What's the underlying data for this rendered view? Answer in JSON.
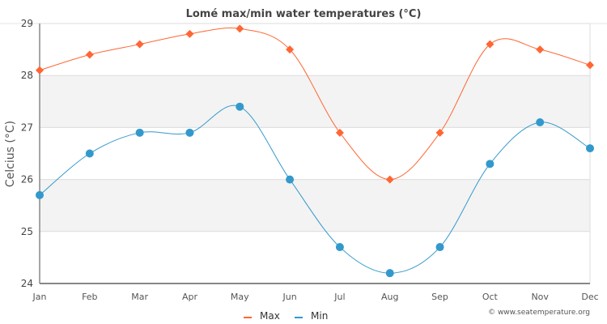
{
  "chart_data": {
    "type": "line",
    "title": "Lomé max/min water temperatures (°C)",
    "xlabel": "",
    "ylabel": "Celcius (°C)",
    "categories": [
      "Jan",
      "Feb",
      "Mar",
      "Apr",
      "May",
      "Jun",
      "Jul",
      "Aug",
      "Sep",
      "Oct",
      "Nov",
      "Dec"
    ],
    "ylim": [
      24,
      29
    ],
    "yticks": [
      24,
      25,
      26,
      27,
      28,
      29
    ],
    "grid": true,
    "alternating_bands": true,
    "legend_position": "bottom-center",
    "series": [
      {
        "name": "Max",
        "color": "#ff6633",
        "marker": "diamond",
        "values": [
          28.1,
          28.4,
          28.6,
          28.8,
          28.9,
          28.5,
          26.9,
          26.0,
          26.9,
          28.6,
          28.5,
          28.2
        ]
      },
      {
        "name": "Min",
        "color": "#3399cc",
        "marker": "circle",
        "values": [
          25.7,
          26.5,
          26.9,
          26.9,
          27.4,
          26.0,
          24.7,
          24.2,
          24.7,
          26.3,
          27.1,
          26.6
        ]
      }
    ],
    "credit": "© www.seatemperature.org"
  },
  "colors": {
    "band": "#f3f3f3",
    "gridline": "#dddddd",
    "axis": "#888888"
  }
}
